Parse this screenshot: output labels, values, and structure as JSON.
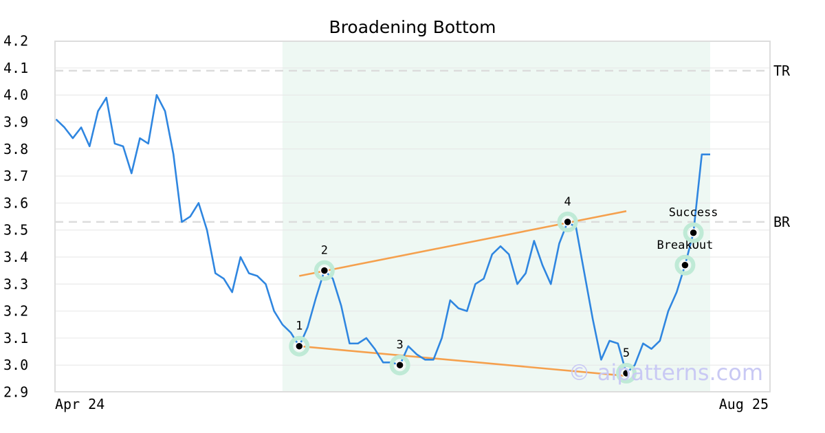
{
  "chart_data": {
    "type": "line",
    "title": "Broadening Bottom",
    "x_labels": [
      "Apr 24",
      "Aug 25"
    ],
    "ylim": [
      2.9,
      4.2
    ],
    "yticks": [
      "2.9",
      "3.0",
      "3.1",
      "3.2",
      "3.3",
      "3.4",
      "3.5",
      "3.6",
      "3.7",
      "3.8",
      "3.9",
      "4.0",
      "4.1",
      "4.2"
    ],
    "grid": true,
    "series": [
      {
        "color": "#2f86e0",
        "values": [
          3.91,
          3.88,
          3.84,
          3.88,
          3.81,
          3.94,
          3.99,
          3.82,
          3.81,
          3.71,
          3.84,
          3.82,
          4.0,
          3.94,
          3.78,
          3.53,
          3.55,
          3.6,
          3.5,
          3.34,
          3.32,
          3.27,
          3.4,
          3.34,
          3.33,
          3.3,
          3.2,
          3.15,
          3.12,
          3.07,
          3.14,
          3.25,
          3.35,
          3.32,
          3.22,
          3.08,
          3.08,
          3.1,
          3.06,
          3.01,
          3.01,
          3.0,
          3.07,
          3.04,
          3.02,
          3.02,
          3.1,
          3.24,
          3.21,
          3.2,
          3.3,
          3.32,
          3.41,
          3.44,
          3.41,
          3.3,
          3.34,
          3.46,
          3.37,
          3.3,
          3.45,
          3.53,
          3.51,
          3.34,
          3.17,
          3.02,
          3.09,
          3.08,
          2.97,
          3.0,
          3.08,
          3.06,
          3.09,
          3.2,
          3.27,
          3.37,
          3.49,
          3.78,
          3.78
        ]
      }
    ],
    "pattern_region": {
      "start_index": 27,
      "end_index": 78,
      "color": "#eef8f3"
    },
    "trendlines": [
      {
        "color": "#f5a04d",
        "from": {
          "index": 29,
          "value": 3.33
        },
        "to": {
          "index": 68,
          "value": 3.57
        }
      },
      {
        "color": "#f5a04d",
        "from": {
          "index": 29,
          "value": 3.07
        },
        "to": {
          "index": 68,
          "value": 2.96
        }
      }
    ],
    "reference_lines": [
      {
        "label": "TR",
        "value": 4.09
      },
      {
        "label": "BR",
        "value": 3.53
      }
    ],
    "points": [
      {
        "label": "1",
        "index": 29,
        "value": 3.07
      },
      {
        "label": "2",
        "index": 32,
        "value": 3.35
      },
      {
        "label": "3",
        "index": 41,
        "value": 3.0
      },
      {
        "label": "4",
        "index": 61,
        "value": 3.53
      },
      {
        "label": "5",
        "index": 68,
        "value": 2.97
      },
      {
        "label": "BreakOut",
        "index": 75,
        "value": 3.37
      },
      {
        "label": "Success",
        "index": 76,
        "value": 3.49
      }
    ],
    "watermark": "© aipatterns.com"
  }
}
